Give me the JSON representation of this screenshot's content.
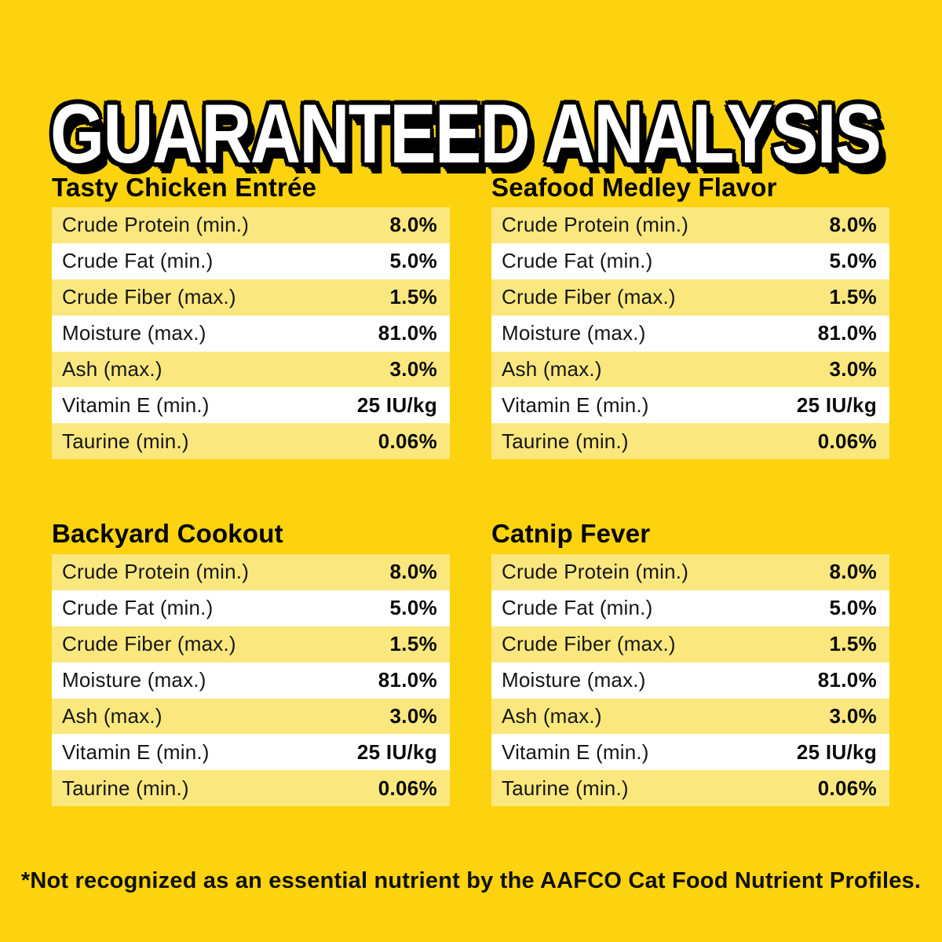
{
  "title": "GUARANTEED ANALYSIS",
  "tables": [
    {
      "name": "Tasty Chicken Entrée",
      "rows": [
        [
          "Crude Protein (min.)",
          "8.0%"
        ],
        [
          "Crude Fat (min.)",
          "5.0%"
        ],
        [
          "Crude Fiber (max.)",
          "1.5%"
        ],
        [
          "Moisture (max.)",
          "81.0%"
        ],
        [
          "Ash (max.)",
          "3.0%"
        ],
        [
          "Vitamin E (min.)",
          "25 IU/kg"
        ],
        [
          "Taurine (min.)",
          "0.06%"
        ]
      ]
    },
    {
      "name": "Seafood Medley Flavor",
      "rows": [
        [
          "Crude Protein (min.)",
          "8.0%"
        ],
        [
          "Crude Fat (min.)",
          "5.0%"
        ],
        [
          "Crude Fiber (max.)",
          "1.5%"
        ],
        [
          "Moisture (max.)",
          "81.0%"
        ],
        [
          "Ash (max.)",
          "3.0%"
        ],
        [
          "Vitamin E (min.)",
          "25 IU/kg"
        ],
        [
          "Taurine (min.)",
          "0.06%"
        ]
      ]
    },
    {
      "name": "Backyard Cookout",
      "rows": [
        [
          "Crude Protein (min.)",
          "8.0%"
        ],
        [
          "Crude Fat (min.)",
          "5.0%"
        ],
        [
          "Crude Fiber (max.)",
          "1.5%"
        ],
        [
          "Moisture (max.)",
          "81.0%"
        ],
        [
          "Ash (max.)",
          "3.0%"
        ],
        [
          "Vitamin E (min.)",
          "25 IU/kg"
        ],
        [
          "Taurine (min.)",
          "0.06%"
        ]
      ]
    },
    {
      "name": "Catnip Fever",
      "rows": [
        [
          "Crude Protein (min.)",
          "8.0%"
        ],
        [
          "Crude Fat (min.)",
          "5.0%"
        ],
        [
          "Crude Fiber (max.)",
          "1.5%"
        ],
        [
          "Moisture (max.)",
          "81.0%"
        ],
        [
          "Ash (max.)",
          "3.0%"
        ],
        [
          "Vitamin E (min.)",
          "25 IU/kg"
        ],
        [
          "Taurine (min.)",
          "0.06%"
        ]
      ]
    }
  ],
  "footnote": "*Not recognized as an essential nutrient by the AAFCO Cat Food Nutrient Profiles.",
  "colors": {
    "background": "#FCD30E",
    "row_highlight": "#FAE87E",
    "row_white": "#FFFFFF",
    "text": "#111111",
    "title_fill": "#FFFFFF",
    "title_outline": "#000000"
  }
}
